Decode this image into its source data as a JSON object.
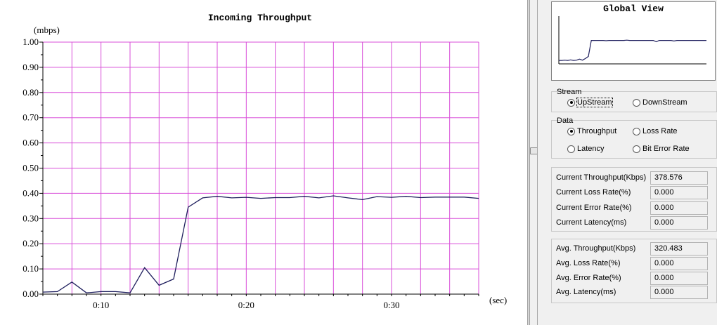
{
  "chart_data": {
    "type": "line",
    "title": "Incoming Throughput",
    "ylabel": "(mbps)",
    "xlabel": "(sec)",
    "x_ticks": [
      "0:10",
      "0:20",
      "0:30"
    ],
    "y_ticks": [
      "0.00",
      "0.10",
      "0.20",
      "0.30",
      "0.40",
      "0.50",
      "0.60",
      "0.70",
      "0.80",
      "0.90",
      "1.00"
    ],
    "ylim": [
      0,
      1.0
    ],
    "xlim": [
      6,
      36
    ],
    "grid": true,
    "x": [
      6,
      7,
      8,
      9,
      10,
      11,
      12,
      13,
      14,
      15,
      16,
      17,
      18,
      19,
      20,
      21,
      22,
      23,
      24,
      25,
      26,
      27,
      28,
      29,
      30,
      31,
      32,
      33,
      34,
      35,
      36
    ],
    "values": [
      0.008,
      0.01,
      0.048,
      0.005,
      0.01,
      0.01,
      0.005,
      0.105,
      0.035,
      0.06,
      0.345,
      0.382,
      0.388,
      0.382,
      0.384,
      0.38,
      0.383,
      0.383,
      0.388,
      0.382,
      0.39,
      0.382,
      0.375,
      0.387,
      0.384,
      0.388,
      0.383,
      0.385,
      0.385,
      0.385,
      0.38
    ],
    "line_color": "#1f1f5e",
    "grid_color": "#d94fd9"
  },
  "global_view": {
    "title": "Global View",
    "values": [
      0.05,
      0.05,
      0.06,
      0.05,
      0.07,
      0.05,
      0.06,
      0.1,
      0.06,
      0.12,
      0.2,
      0.8,
      0.8,
      0.8,
      0.8,
      0.8,
      0.79,
      0.8,
      0.8,
      0.8,
      0.8,
      0.8,
      0.8,
      0.81,
      0.8,
      0.8,
      0.8,
      0.8,
      0.8,
      0.8,
      0.8,
      0.8,
      0.8,
      0.75,
      0.8,
      0.8,
      0.8,
      0.8,
      0.8,
      0.78,
      0.8,
      0.8,
      0.8,
      0.8,
      0.8,
      0.8,
      0.8,
      0.8,
      0.8,
      0.8,
      0.8
    ]
  },
  "stream": {
    "title": "Stream",
    "upstream": "UpStream",
    "downstream": "DownStream",
    "selected": "upstream"
  },
  "data_group": {
    "title": "Data",
    "throughput": "Throughput",
    "loss_rate": "Loss Rate",
    "latency": "Latency",
    "bit_error_rate": "Bit Error Rate",
    "selected": "throughput"
  },
  "current": {
    "throughput_label": "Current Throughput(Kbps)",
    "throughput_value": "378.576",
    "loss_label": "Current Loss Rate(%)",
    "loss_value": "0.000",
    "error_label": "Current Error Rate(%)",
    "error_value": "0.000",
    "latency_label": "Current Latency(ms)",
    "latency_value": "0.000"
  },
  "average": {
    "throughput_label": "Avg. Throughput(Kbps)",
    "throughput_value": "320.483",
    "loss_label": "Avg. Loss Rate(%)",
    "loss_value": "0.000",
    "error_label": "Avg. Error Rate(%)",
    "error_value": "0.000",
    "latency_label": "Avg. Latency(ms)",
    "latency_value": "0.000"
  }
}
